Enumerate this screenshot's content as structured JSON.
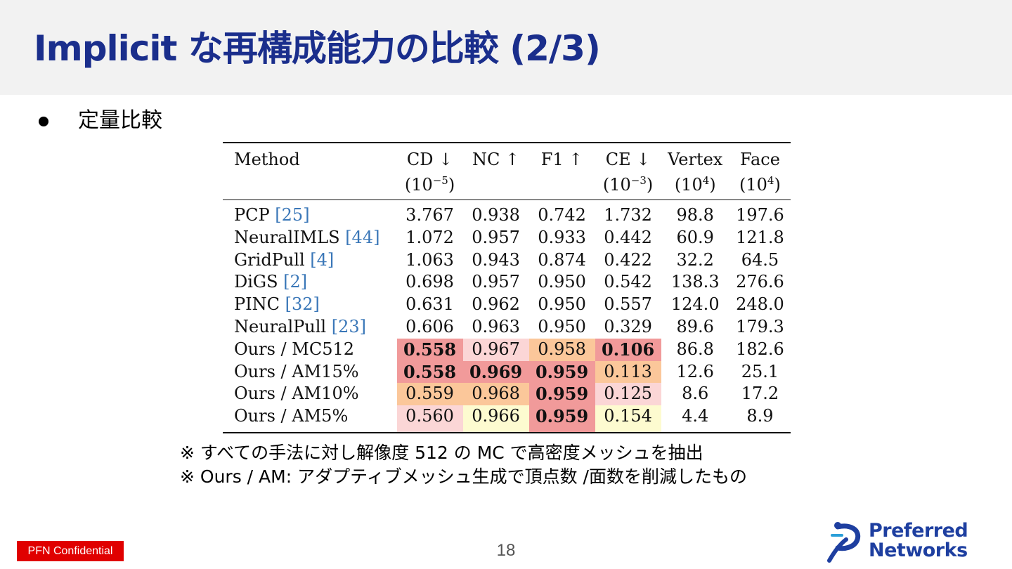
{
  "slide": {
    "title": "Implicit な再構成能力の比較  (2/3)",
    "bullet": "定量比較",
    "page_number": "18",
    "confidential": "PFN Confidential"
  },
  "table": {
    "headers": [
      {
        "label": "Method",
        "unit_base": "",
        "unit_exp": ""
      },
      {
        "label": "CD ↓",
        "unit_base": "(10",
        "unit_exp": "−5",
        "unit_close": ")"
      },
      {
        "label": "NC ↑",
        "unit_base": "",
        "unit_exp": ""
      },
      {
        "label": "F1 ↑",
        "unit_base": "",
        "unit_exp": ""
      },
      {
        "label": "CE ↓",
        "unit_base": "(10",
        "unit_exp": "−3",
        "unit_close": ")"
      },
      {
        "label": "Vertex",
        "unit_base": "(10",
        "unit_exp": "4",
        "unit_close": ")"
      },
      {
        "label": "Face",
        "unit_base": "(10",
        "unit_exp": "4",
        "unit_close": ")"
      }
    ],
    "rows": [
      {
        "method": "PCP ",
        "cite": "[25]",
        "cd": "3.767",
        "nc": "0.938",
        "f1": "0.742",
        "ce": "1.732",
        "vertex": "98.8",
        "face": "197.6"
      },
      {
        "method": "NeuralIMLS ",
        "cite": "[44]",
        "cd": "1.072",
        "nc": "0.957",
        "f1": "0.933",
        "ce": "0.442",
        "vertex": "60.9",
        "face": "121.8"
      },
      {
        "method": "GridPull ",
        "cite": "[4]",
        "cd": "1.063",
        "nc": "0.943",
        "f1": "0.874",
        "ce": "0.422",
        "vertex": "32.2",
        "face": "64.5"
      },
      {
        "method": "DiGS ",
        "cite": "[2]",
        "cd": "0.698",
        "nc": "0.957",
        "f1": "0.950",
        "ce": "0.542",
        "vertex": "138.3",
        "face": "276.6"
      },
      {
        "method": "PINC ",
        "cite": "[32]",
        "cd": "0.631",
        "nc": "0.962",
        "f1": "0.950",
        "ce": "0.557",
        "vertex": "124.0",
        "face": "248.0"
      },
      {
        "method": "NeuralPull ",
        "cite": "[23]",
        "cd": "0.606",
        "nc": "0.963",
        "f1": "0.950",
        "ce": "0.329",
        "vertex": "89.6",
        "face": "179.3"
      },
      {
        "method": "Ours / MC512",
        "cite": "",
        "cd": "0.558",
        "nc": "0.967",
        "f1": "0.958",
        "ce": "0.106",
        "vertex": "86.8",
        "face": "182.6"
      },
      {
        "method": "Ours / AM15%",
        "cite": "",
        "cd": "0.558",
        "nc": "0.969",
        "f1": "0.959",
        "ce": "0.113",
        "vertex": "12.6",
        "face": "25.1"
      },
      {
        "method": "Ours / AM10%",
        "cite": "",
        "cd": "0.559",
        "nc": "0.968",
        "f1": "0.959",
        "ce": "0.125",
        "vertex": "8.6",
        "face": "17.2"
      },
      {
        "method": "Ours / AM5%",
        "cite": "",
        "cd": "0.560",
        "nc": "0.966",
        "f1": "0.959",
        "ce": "0.154",
        "vertex": "4.4",
        "face": "8.9"
      }
    ]
  },
  "notes": [
    "※ すべての手法に対し解像度 512 の MC で高密度メッシュを抽出",
    "※ Ours / AM: アダプティブメッシュ生成で頂点数 /面数を削減したもの"
  ],
  "logo": {
    "line1": "Preferred",
    "line2": "Networks"
  },
  "colors": {
    "title": "#1a2e8c",
    "citation": "#3a77b8",
    "highlight_red": "#f19a9a",
    "highlight_orange": "#fbc79a",
    "highlight_pink": "#fbd6d6",
    "highlight_yellow": "#fdfbd0",
    "confidential_bg": "#e00000",
    "logo": "#1e3fa0"
  }
}
